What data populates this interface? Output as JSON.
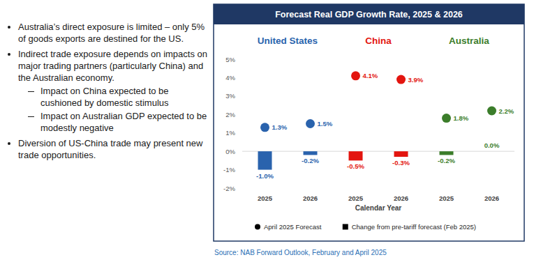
{
  "bullets": [
    {
      "text": "Australia’s direct exposure is limited – only 5% of goods exports are destined for the US."
    },
    {
      "text": "Indirect trade exposure depends on impacts on major trading partners (particularly China) and the Australian economy.",
      "sub": [
        "Impact on China expected to be cushioned by domestic stimulus",
        "Impact on Australian GDP expected to be modestly negative"
      ]
    },
    {
      "text": "Diversion of US-China trade may present new trade opportunities."
    }
  ],
  "source": "Source: NAB Forward Outlook, February and April 2025",
  "chart_data": {
    "type": "bar",
    "title": "Forecast Real GDP Growth Rate, 2025 & 2026",
    "x_label": "Calendar Year",
    "groups": [
      {
        "name": "United States",
        "color": "#2a63ad"
      },
      {
        "name": "China",
        "color": "#e3150f"
      },
      {
        "name": "Australia",
        "color": "#3b7d2a"
      }
    ],
    "categories": [
      "2025",
      "2026",
      "2025",
      "2026",
      "2025",
      "2026"
    ],
    "series": [
      {
        "name": "April 2025 Forecast",
        "type": "scatter",
        "marker": "circle",
        "colors": [
          "#2a63ad",
          "#2a63ad",
          "#e3150f",
          "#e3150f",
          "#3b7d2a",
          "#3b7d2a"
        ],
        "values": [
          1.3,
          1.5,
          4.1,
          3.9,
          1.8,
          2.2
        ],
        "value_labels": [
          "1.3%",
          "1.5%",
          "4.1%",
          "3.9%",
          "1.8%",
          "2.2%"
        ]
      },
      {
        "name": "Change from pre-tariff forecast (Feb 2025)",
        "type": "bar",
        "marker": "square",
        "colors": [
          "#2a63ad",
          "#2a63ad",
          "#e3150f",
          "#e3150f",
          "#3b7d2a",
          "#3b7d2a"
        ],
        "values": [
          -1.0,
          -0.2,
          -0.5,
          -0.3,
          -0.2,
          0.0
        ],
        "value_labels": [
          "-1.0%",
          "-0.2%",
          "-0.5%",
          "-0.3%",
          "-0.2%",
          "0.0%"
        ]
      }
    ],
    "ylim": [
      -2,
      5
    ],
    "yticks": [
      {
        "value": -2,
        "label": "-2%"
      },
      {
        "value": -1,
        "label": "-1%"
      },
      {
        "value": 0,
        "label": "0%"
      },
      {
        "value": 1,
        "label": "1%"
      },
      {
        "value": 2,
        "label": "2%"
      },
      {
        "value": 3,
        "label": "3%"
      },
      {
        "value": 4,
        "label": "4%"
      },
      {
        "value": 5,
        "label": "5%"
      }
    ],
    "grid": false,
    "legend": "bottom",
    "data_labels": true
  }
}
